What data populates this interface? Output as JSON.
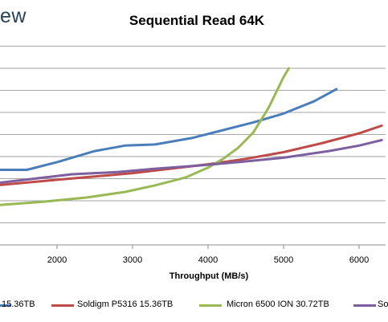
{
  "brand_fragment": "ew",
  "chart_data": {
    "type": "line",
    "title": "Sequential Read 64K",
    "xlabel": "Throughput (MB/s)",
    "ylabel": "",
    "xlim": [
      1200,
      6300
    ],
    "ylim": [
      0,
      10
    ],
    "x_ticks": [
      2000,
      3000,
      4000,
      5000,
      6000
    ],
    "grid": "horizontal",
    "legend_position": "bottom",
    "series": [
      {
        "name": "15.36TB",
        "color": "#4a7ebb",
        "points": [
          [
            1200,
            3.4
          ],
          [
            1600,
            3.4
          ],
          [
            2000,
            3.75
          ],
          [
            2500,
            4.25
          ],
          [
            2900,
            4.5
          ],
          [
            3300,
            4.55
          ],
          [
            3800,
            4.85
          ],
          [
            4200,
            5.2
          ],
          [
            4600,
            5.55
          ],
          [
            5000,
            5.95
          ],
          [
            5400,
            6.5
          ],
          [
            5700,
            7.05
          ]
        ]
      },
      {
        "name": "Soldigm P5316 15.36TB",
        "color": "#be4b48",
        "points": [
          [
            1200,
            2.7
          ],
          [
            2000,
            2.95
          ],
          [
            2500,
            3.1
          ],
          [
            3000,
            3.25
          ],
          [
            3500,
            3.45
          ],
          [
            4000,
            3.65
          ],
          [
            4500,
            3.9
          ],
          [
            5000,
            4.2
          ],
          [
            5500,
            4.6
          ],
          [
            6000,
            5.05
          ],
          [
            6300,
            5.4
          ]
        ]
      },
      {
        "name": "Micron 6500 ION 30.72TB",
        "color": "#98b954",
        "points": [
          [
            1200,
            1.8
          ],
          [
            1800,
            1.95
          ],
          [
            2400,
            2.15
          ],
          [
            2900,
            2.4
          ],
          [
            3300,
            2.7
          ],
          [
            3700,
            3.05
          ],
          [
            4000,
            3.5
          ],
          [
            4200,
            3.9
          ],
          [
            4400,
            4.4
          ],
          [
            4600,
            5.1
          ],
          [
            4800,
            6.2
          ],
          [
            5000,
            7.6
          ],
          [
            5070,
            8.0
          ]
        ]
      },
      {
        "name": "So",
        "color": "#7d5fa0",
        "points": [
          [
            1200,
            2.8
          ],
          [
            1700,
            3.0
          ],
          [
            2200,
            3.2
          ],
          [
            2800,
            3.3
          ],
          [
            3300,
            3.45
          ],
          [
            3900,
            3.6
          ],
          [
            4400,
            3.75
          ],
          [
            5000,
            3.95
          ],
          [
            5600,
            4.25
          ],
          [
            6000,
            4.5
          ],
          [
            6300,
            4.75
          ]
        ]
      }
    ]
  }
}
